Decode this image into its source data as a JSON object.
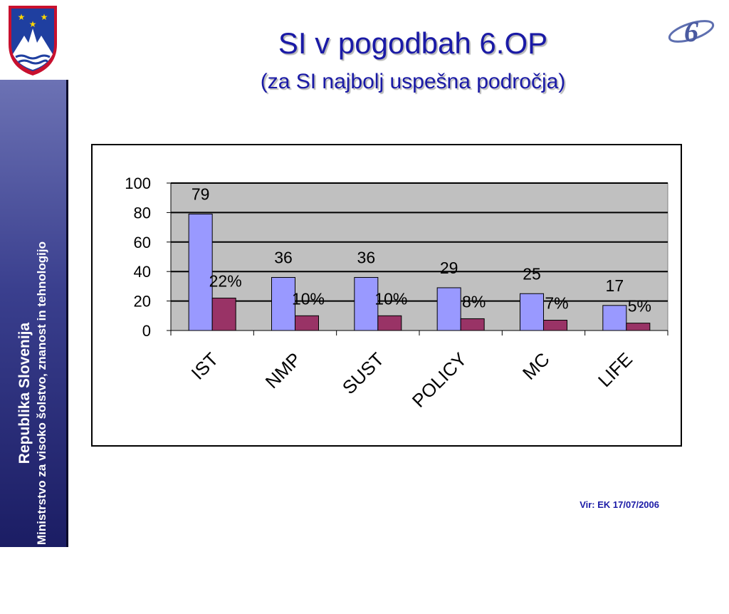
{
  "slide": {
    "title": "SI v pogodbah 6.OP",
    "subtitle": "(za SI najbolj uspešna področja)",
    "source": "Vir: EK 17/07/2006"
  },
  "sidebar": {
    "title": "Republika Slovenija",
    "subtitle": "Ministrstvo za visoko šolstvo, znanost in tehnologijo"
  },
  "colors": {
    "plot_background": "#c0c0c0",
    "series_count": "#9999ff",
    "series_percent": "#993366",
    "title": "#1a1aa6"
  },
  "icons": {
    "crest": "slovenia-coat-of-arms-icon",
    "logo": "fp6-logo-icon"
  },
  "chart_data": {
    "type": "bar",
    "categories": [
      "IST",
      "NMP",
      "SUST",
      "POLICY",
      "MC",
      "LIFE"
    ],
    "series": [
      {
        "values": [
          79,
          36,
          36,
          29,
          25,
          17
        ],
        "labels": [
          "79",
          "36",
          "36",
          "29",
          "25",
          "17"
        ],
        "color": "#9999ff"
      },
      {
        "values": [
          22,
          10,
          10,
          8,
          7,
          5
        ],
        "labels": [
          "22%",
          "10%",
          "10%",
          "8%",
          "7%",
          "5%"
        ],
        "color": "#993366"
      }
    ],
    "yticks": [
      "0",
      "20",
      "40",
      "60",
      "80",
      "100"
    ],
    "ylim": [
      0,
      100
    ],
    "grid": true,
    "legend": "none",
    "title": "",
    "xlabel": "",
    "ylabel": ""
  }
}
